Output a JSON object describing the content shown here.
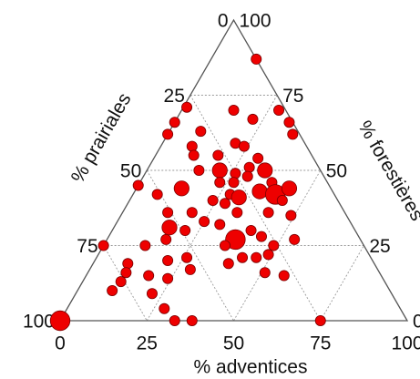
{
  "chart_data": {
    "type": "ternary",
    "axes": {
      "bottom": {
        "label": "% adventices",
        "ticks": [
          0,
          25,
          50,
          75,
          100
        ]
      },
      "left": {
        "label": "% prairiales",
        "ticks": [
          0,
          25,
          50,
          75,
          100
        ]
      },
      "right": {
        "label": "% forestières",
        "ticks": [
          0,
          25,
          50,
          75,
          100
        ]
      }
    },
    "grid": true,
    "color": "#ee0000",
    "points": {
      "adventices": [
        13,
        1,
        0,
        0,
        9,
        15,
        22,
        28,
        33,
        36,
        9,
        11,
        18,
        21,
        24,
        30,
        34,
        21,
        15,
        26,
        29,
        23,
        27,
        30,
        28,
        31,
        28,
        24,
        38,
        36,
        41,
        44,
        44,
        49,
        42,
        0,
        7,
        13,
        13,
        16,
        17,
        20,
        21,
        25,
        30,
        37,
        33,
        40,
        44,
        49,
        54,
        35,
        39,
        42,
        46,
        49,
        51,
        57,
        12,
        0,
        10,
        11,
        18,
        11,
        10,
        22,
        24,
        21,
        26,
        29,
        28,
        33,
        38,
        75,
        0
      ],
      "prairiales": [
        0,
        28,
        34,
        38,
        28,
        15,
        11,
        2,
        1,
        2,
        33,
        34,
        27,
        20,
        18,
        16,
        16,
        29,
        35,
        25,
        20,
        31,
        27,
        22,
        30,
        28,
        33,
        36,
        16,
        21,
        17,
        12,
        16,
        16,
        22,
        55,
        51,
        43,
        51,
        53,
        56,
        44,
        49,
        42,
        38,
        36,
        31,
        30,
        28,
        26,
        19,
        40,
        42,
        37,
        33,
        29,
        33,
        28,
        63,
        75,
        71,
        73,
        67,
        76,
        80,
        69,
        62,
        59,
        53,
        54,
        68,
        67,
        62,
        25,
        100
      ],
      "forestieres": [
        87,
        71,
        66,
        62,
        63,
        70,
        67,
        70,
        66,
        62,
        58,
        55,
        55,
        59,
        58,
        54,
        50,
        50,
        50,
        49,
        51,
        46,
        46,
        48,
        42,
        41,
        39,
        40,
        46,
        43,
        42,
        44,
        40,
        35,
        36,
        45,
        42,
        44,
        36,
        31,
        27,
        36,
        30,
        33,
        32,
        27,
        36,
        30,
        28,
        25,
        27,
        25,
        19,
        21,
        21,
        22,
        16,
        15,
        25,
        25,
        19,
        16,
        15,
        13,
        10,
        9,
        14,
        20,
        21,
        17,
        4,
        0,
        0,
        0,
        0
      ],
      "sizes": [
        1,
        1,
        1,
        1,
        1,
        1,
        1,
        1,
        1,
        1,
        1,
        1,
        1,
        1,
        1,
        1,
        2,
        2,
        1,
        1,
        1,
        1,
        1,
        1,
        1,
        2,
        1,
        1,
        1,
        2,
        3,
        2,
        1,
        1,
        1,
        1,
        1,
        2,
        1,
        2,
        1,
        1,
        1,
        1,
        1,
        3,
        1,
        1,
        1,
        1,
        1,
        1,
        1,
        1,
        1,
        1,
        1,
        1,
        1,
        1,
        1,
        1,
        1,
        1,
        1,
        1,
        1,
        1,
        1,
        1,
        1,
        1,
        1,
        1,
        3
      ]
    }
  }
}
